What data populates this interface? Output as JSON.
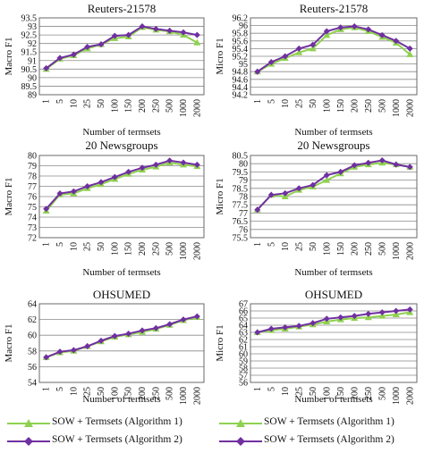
{
  "chart_data": [
    {
      "type": "line",
      "title": "Reuters-21578",
      "xlabel": "Number of termsets",
      "ylabel": "Macro F1",
      "categories": [
        "1",
        "5",
        "10",
        "25",
        "50",
        "100",
        "150",
        "200",
        "250",
        "500",
        "1000",
        "2000"
      ],
      "ylim": [
        89,
        93.5
      ],
      "yticks": [
        "89",
        "89.5",
        "90",
        "90.5",
        "91",
        "91.5",
        "92",
        "92.5",
        "93",
        "93.5"
      ],
      "grid": true,
      "series": [
        {
          "name": "SOW + Termsets (Algorithm 1)",
          "color": "#8fd14f",
          "values": [
            90.5,
            91.1,
            91.3,
            91.7,
            91.95,
            92.3,
            92.4,
            92.95,
            92.8,
            92.7,
            92.5,
            92.05
          ]
        },
        {
          "name": "SOW + Termsets (Algorithm 2)",
          "color": "#7030a0",
          "values": [
            90.55,
            91.15,
            91.35,
            91.8,
            91.95,
            92.45,
            92.5,
            93.0,
            92.85,
            92.75,
            92.65,
            92.5
          ]
        }
      ]
    },
    {
      "type": "line",
      "title": "Reuters-21578",
      "xlabel": "Number of termsets",
      "ylabel": "Micro F1",
      "categories": [
        "1",
        "5",
        "10",
        "25",
        "50",
        "100",
        "150",
        "200",
        "250",
        "500",
        "1000",
        "2000"
      ],
      "ylim": [
        94.2,
        96.2
      ],
      "yticks": [
        "94.2",
        "94.4",
        "94.6",
        "94.8",
        "95",
        "95.2",
        "95.4",
        "95.6",
        "95.8",
        "96",
        "96.2"
      ],
      "grid": true,
      "series": [
        {
          "name": "SOW + Termsets (Algorithm 1)",
          "color": "#8fd14f",
          "values": [
            94.8,
            95.0,
            95.15,
            95.3,
            95.4,
            95.75,
            95.9,
            95.95,
            95.85,
            95.7,
            95.55,
            95.25
          ]
        },
        {
          "name": "SOW + Termsets (Algorithm 2)",
          "color": "#7030a0",
          "values": [
            94.8,
            95.05,
            95.2,
            95.4,
            95.5,
            95.85,
            95.95,
            95.98,
            95.9,
            95.75,
            95.6,
            95.4
          ]
        }
      ]
    },
    {
      "type": "line",
      "title": "20 Newsgroups",
      "xlabel": "Number of termsets",
      "ylabel": "Macro F1",
      "categories": [
        "1",
        "5",
        "10",
        "25",
        "50",
        "100",
        "150",
        "200",
        "250",
        "500",
        "1000",
        "2000"
      ],
      "ylim": [
        72,
        80
      ],
      "yticks": [
        "72",
        "73",
        "74",
        "75",
        "76",
        "77",
        "78",
        "79",
        "80"
      ],
      "grid": true,
      "series": [
        {
          "name": "SOW + Termsets (Algorithm 1)",
          "color": "#8fd14f",
          "values": [
            74.6,
            76.2,
            76.3,
            76.8,
            77.2,
            77.7,
            78.2,
            78.6,
            78.9,
            79.3,
            79.1,
            78.95
          ]
        },
        {
          "name": "SOW + Termsets (Algorithm 2)",
          "color": "#7030a0",
          "values": [
            74.8,
            76.3,
            76.5,
            77.0,
            77.4,
            77.9,
            78.4,
            78.8,
            79.1,
            79.5,
            79.3,
            79.1
          ]
        }
      ]
    },
    {
      "type": "line",
      "title": "20 Newsgroups",
      "xlabel": "Number of termsets",
      "ylabel": "Micro F1",
      "categories": [
        "1",
        "5",
        "10",
        "25",
        "50",
        "100",
        "150",
        "200",
        "250",
        "500",
        "1000",
        "2000"
      ],
      "ylim": [
        75.5,
        80.5
      ],
      "yticks": [
        "75.5",
        "76",
        "76.5",
        "77",
        "77.5",
        "78",
        "78.5",
        "79",
        "79.5",
        "80",
        "80.5"
      ],
      "grid": true,
      "series": [
        {
          "name": "SOW + Termsets (Algorithm 1)",
          "color": "#8fd14f",
          "values": [
            77.2,
            78.1,
            78.0,
            78.4,
            78.6,
            79.0,
            79.4,
            79.8,
            79.95,
            80.05,
            79.95,
            79.8
          ]
        },
        {
          "name": "SOW + Termsets (Algorithm 2)",
          "color": "#7030a0",
          "values": [
            77.2,
            78.1,
            78.2,
            78.5,
            78.7,
            79.3,
            79.5,
            79.9,
            80.05,
            80.2,
            79.95,
            79.8
          ]
        }
      ]
    },
    {
      "type": "line",
      "title": "OHSUMED",
      "xlabel": "Number of termsets",
      "ylabel": "Macro F1",
      "categories": [
        "1",
        "5",
        "10",
        "25",
        "50",
        "100",
        "150",
        "200",
        "250",
        "500",
        "1000",
        "2000"
      ],
      "ylim": [
        54,
        64
      ],
      "yticks": [
        "54",
        "56",
        "58",
        "60",
        "62",
        "64"
      ],
      "grid": true,
      "series": [
        {
          "name": "SOW + Termsets (Algorithm 1)",
          "color": "#8fd14f",
          "values": [
            57.2,
            57.8,
            58.0,
            58.6,
            59.2,
            59.8,
            60.1,
            60.4,
            60.8,
            61.3,
            61.9,
            62.3
          ]
        },
        {
          "name": "SOW + Termsets (Algorithm 2)",
          "color": "#7030a0",
          "values": [
            57.2,
            57.9,
            58.1,
            58.6,
            59.3,
            59.9,
            60.2,
            60.6,
            60.9,
            61.4,
            62.0,
            62.4
          ]
        }
      ]
    },
    {
      "type": "line",
      "title": "OHSUMED",
      "xlabel": "Number of termsets",
      "ylabel": "Micro F1",
      "categories": [
        "1",
        "5",
        "10",
        "25",
        "50",
        "100",
        "150",
        "200",
        "250",
        "500",
        "1000",
        "2000"
      ],
      "ylim": [
        56,
        67
      ],
      "yticks": [
        "56",
        "57",
        "58",
        "59",
        "60",
        "61",
        "62",
        "63",
        "64",
        "65",
        "66",
        "67"
      ],
      "grid": true,
      "series": [
        {
          "name": "SOW + Termsets (Algorithm 1)",
          "color": "#8fd14f",
          "values": [
            63.0,
            63.3,
            63.5,
            63.8,
            64.1,
            64.5,
            64.8,
            65.0,
            65.1,
            65.3,
            65.5,
            65.8
          ]
        },
        {
          "name": "SOW + Termsets (Algorithm 2)",
          "color": "#7030a0",
          "values": [
            63.0,
            63.5,
            63.7,
            63.9,
            64.3,
            64.9,
            65.1,
            65.3,
            65.6,
            65.8,
            66.0,
            66.2
          ]
        }
      ]
    }
  ],
  "legend": {
    "items": [
      {
        "label": "SOW + Termsets (Algorithm 1)",
        "color": "#8fd14f",
        "marker": "triangle"
      },
      {
        "label": "SOW + Termsets (Algorithm 2)",
        "color": "#7030a0",
        "marker": "diamond"
      }
    ]
  }
}
